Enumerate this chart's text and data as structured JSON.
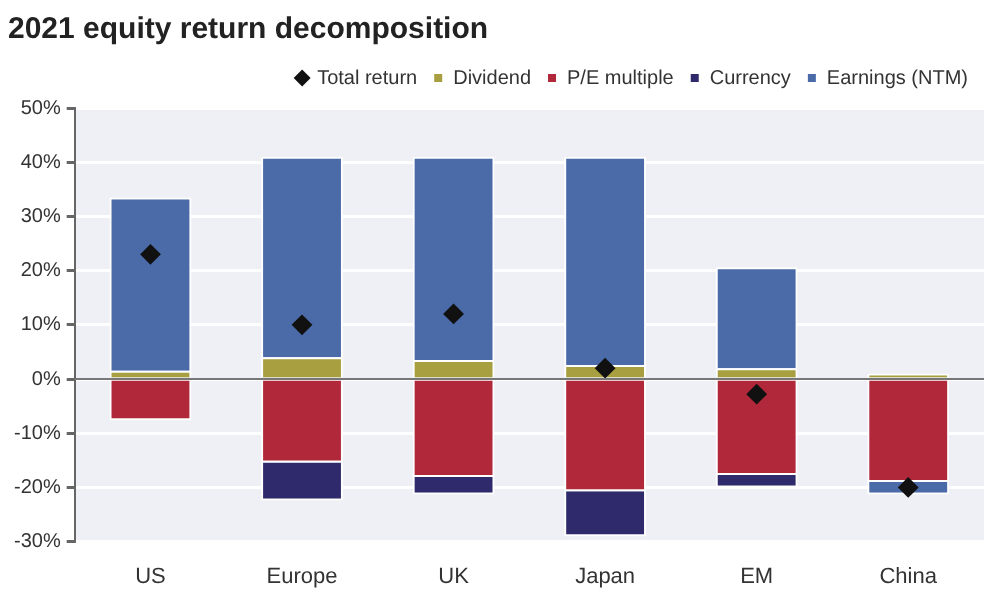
{
  "chart_data": {
    "type": "bar",
    "title": "2021 equity return decomposition",
    "stacked": true,
    "categories": [
      "US",
      "Europe",
      "UK",
      "Japan",
      "EM",
      "China"
    ],
    "series": [
      {
        "name": "Dividend",
        "color": "#a8a040",
        "values": [
          1.5,
          4,
          3.5,
          2.6,
          2,
          1
        ]
      },
      {
        "name": "P/E multiple",
        "color": "#b0283a",
        "values": [
          -7.6,
          -15.4,
          -18.1,
          -20.7,
          -17.7,
          -19
        ]
      },
      {
        "name": "Currency",
        "color": "#2e2a6b",
        "values": [
          null,
          -7,
          -3.2,
          -8.3,
          -2.3,
          null
        ]
      },
      {
        "name": "Earnings (NTM)",
        "color": "#4a6aa8",
        "values": [
          32,
          37,
          37.5,
          38.4,
          18.6,
          -2.3
        ]
      },
      {
        "name": "Total return",
        "type": "scatter",
        "color": "#111111",
        "marker": "diamond",
        "values": [
          23,
          10,
          12,
          2,
          -2.8,
          -20
        ]
      }
    ],
    "ylim": [
      -30,
      50
    ],
    "yticks": [
      {
        "value": -30,
        "label": "-30%"
      },
      {
        "value": -20,
        "label": "-20%"
      },
      {
        "value": -10,
        "label": "-10%"
      },
      {
        "value": 0,
        "label": "0%"
      },
      {
        "value": 10,
        "label": "10%"
      },
      {
        "value": 20,
        "label": "20%"
      },
      {
        "value": 30,
        "label": "30%"
      },
      {
        "value": 40,
        "label": "40%"
      },
      {
        "value": 50,
        "label": "50%"
      }
    ],
    "grid": "y",
    "legend": "top"
  }
}
